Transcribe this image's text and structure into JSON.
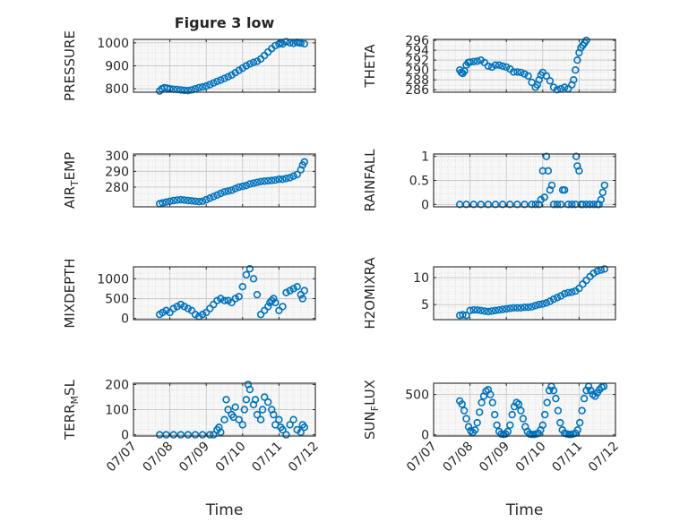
{
  "figure": {
    "title": "Figure 3 low",
    "xlabel": "Time"
  },
  "colors": {
    "marker": "#0072BD",
    "axis": "#262626",
    "grid": "#d9d9d9",
    "axes_bg": "#f7f7f7"
  },
  "chart_data": [
    {
      "type": "scatter",
      "ylabel": "PRESSURE",
      "ylim": [
        785,
        1015
      ],
      "yticks": [
        800,
        900,
        1000
      ],
      "xticks": [
        "07/07",
        "07/08",
        "07/09",
        "07/10",
        "07/11",
        "07/12"
      ],
      "grid": "on",
      "x_days": [
        0.72,
        0.78,
        0.85,
        0.92,
        1.0,
        1.1,
        1.2,
        1.3,
        1.4,
        1.5,
        1.6,
        1.7,
        1.8,
        1.9,
        2.0,
        2.1,
        2.2,
        2.3,
        2.4,
        2.5,
        2.6,
        2.7,
        2.8,
        2.9,
        3.0,
        3.1,
        3.2,
        3.3,
        3.4,
        3.5,
        3.6,
        3.7,
        3.8,
        3.9,
        4.0,
        4.05,
        4.1,
        4.2,
        4.3,
        4.4,
        4.5,
        4.55,
        4.6,
        4.7
      ],
      "y": [
        790,
        800,
        805,
        803,
        800,
        798,
        797,
        795,
        793,
        792,
        795,
        800,
        805,
        808,
        812,
        818,
        825,
        832,
        838,
        845,
        852,
        860,
        870,
        880,
        890,
        900,
        908,
        915,
        920,
        930,
        945,
        960,
        975,
        988,
        995,
        1000,
        995,
        1005,
        1000,
        998,
        1002,
        1000,
        999,
        996
      ]
    },
    {
      "type": "scatter",
      "ylabel": "THETA",
      "ylim": [
        285.5,
        296.2
      ],
      "yticks": [
        286,
        288,
        290,
        292,
        294,
        296
      ],
      "xticks": [
        "07/07",
        "07/08",
        "07/09",
        "07/10",
        "07/11",
        "07/12"
      ],
      "grid": "on",
      "x_days": [
        0.72,
        0.76,
        0.8,
        0.85,
        0.9,
        0.95,
        1.0,
        1.1,
        1.2,
        1.3,
        1.4,
        1.5,
        1.6,
        1.7,
        1.8,
        1.9,
        2.0,
        2.1,
        2.2,
        2.3,
        2.4,
        2.5,
        2.6,
        2.7,
        2.8,
        2.85,
        2.9,
        2.95,
        3.0,
        3.1,
        3.2,
        3.3,
        3.4,
        3.5,
        3.6,
        3.7,
        3.8,
        3.85,
        3.9,
        3.95,
        4.0,
        4.05,
        4.1,
        4.15,
        4.2
      ],
      "y": [
        290,
        289.5,
        289.3,
        289.8,
        291,
        291.5,
        291.6,
        291.7,
        291.8,
        292,
        291.5,
        290.8,
        290.6,
        291,
        291,
        290.8,
        290.6,
        290.2,
        289.6,
        289.6,
        289.5,
        289.2,
        288.8,
        287.5,
        286.5,
        287,
        288,
        289,
        289.5,
        288.8,
        287.8,
        286.5,
        286,
        286.2,
        286.5,
        286.2,
        287,
        288,
        290,
        292,
        293.5,
        294.5,
        295,
        295.5,
        296
      ]
    },
    {
      "type": "scatter",
      "ylabel": "AIR_TEMP",
      "ylim": [
        267.5,
        301
      ],
      "yticks": [
        280,
        290,
        300
      ],
      "xticks": [
        "07/07",
        "07/08",
        "07/09",
        "07/10",
        "07/11",
        "07/12"
      ],
      "grid": "on",
      "x_days": [
        0.72,
        0.8,
        0.9,
        1.0,
        1.1,
        1.2,
        1.3,
        1.4,
        1.5,
        1.6,
        1.7,
        1.8,
        1.9,
        2.0,
        2.1,
        2.2,
        2.3,
        2.4,
        2.5,
        2.6,
        2.7,
        2.8,
        2.9,
        3.0,
        3.1,
        3.2,
        3.3,
        3.4,
        3.5,
        3.6,
        3.7,
        3.8,
        3.9,
        4.0,
        4.1,
        4.2,
        4.3,
        4.4,
        4.5,
        4.6,
        4.65,
        4.7
      ],
      "y": [
        269.5,
        270,
        270.5,
        271,
        271.5,
        271.8,
        272,
        271.8,
        271.5,
        271.3,
        271,
        270.8,
        271,
        272,
        273,
        274,
        275,
        276,
        277,
        277.5,
        278,
        279,
        280,
        280.5,
        281,
        282,
        282.5,
        283,
        283.5,
        283.8,
        284,
        284.2,
        284.5,
        285,
        285,
        285.5,
        286,
        287,
        288,
        291,
        294,
        296
      ]
    },
    {
      "type": "scatter",
      "ylabel": "RAINFALL",
      "ylim": [
        -0.05,
        1.05
      ],
      "yticks": [
        0,
        0.5,
        1
      ],
      "xticks": [
        "07/07",
        "07/08",
        "07/09",
        "07/10",
        "07/11",
        "07/12"
      ],
      "grid": "on",
      "x_days": [
        0.72,
        0.9,
        1.1,
        1.3,
        1.5,
        1.7,
        1.9,
        2.1,
        2.3,
        2.5,
        2.7,
        2.8,
        2.9,
        2.95,
        3.0,
        3.05,
        3.1,
        3.15,
        3.2,
        3.25,
        3.3,
        3.4,
        3.5,
        3.55,
        3.6,
        3.7,
        3.8,
        3.9,
        3.92,
        3.95,
        4.0,
        4.05,
        4.1,
        4.2,
        4.3,
        4.4,
        4.5,
        4.55,
        4.6,
        4.65,
        4.7
      ],
      "y": [
        0,
        0,
        0,
        0,
        0,
        0,
        0,
        0,
        0,
        0,
        0,
        0,
        0,
        0.1,
        0.7,
        0.15,
        1.0,
        0.7,
        0.3,
        0.4,
        0,
        0,
        0,
        0.3,
        0.3,
        0,
        0,
        0,
        1.0,
        0.8,
        0.7,
        0,
        0,
        0,
        0,
        0,
        0,
        0,
        0.1,
        0.25,
        0.4
      ]
    },
    {
      "type": "scatter",
      "ylabel": "MIXDEPTH",
      "ylim": [
        -30,
        1300
      ],
      "yticks": [
        0,
        500,
        1000
      ],
      "xticks": [
        "07/07",
        "07/08",
        "07/09",
        "07/10",
        "07/11",
        "07/12"
      ],
      "grid": "on",
      "x_days": [
        0.72,
        0.8,
        0.9,
        1.0,
        1.1,
        1.2,
        1.3,
        1.4,
        1.5,
        1.6,
        1.7,
        1.8,
        1.9,
        2.0,
        2.1,
        2.2,
        2.3,
        2.4,
        2.5,
        2.6,
        2.7,
        2.8,
        2.9,
        3.0,
        3.1,
        3.2,
        3.3,
        3.4,
        3.5,
        3.6,
        3.7,
        3.75,
        3.8,
        3.85,
        3.9,
        4.0,
        4.1,
        4.2,
        4.3,
        4.4,
        4.5,
        4.6,
        4.65,
        4.7
      ],
      "y": [
        100,
        150,
        200,
        150,
        250,
        300,
        350,
        300,
        250,
        200,
        100,
        50,
        100,
        150,
        250,
        350,
        450,
        500,
        450,
        450,
        400,
        500,
        550,
        800,
        1100,
        1250,
        1000,
        600,
        100,
        200,
        300,
        400,
        450,
        500,
        400,
        200,
        300,
        650,
        700,
        750,
        800,
        600,
        500,
        700
      ]
    },
    {
      "type": "scatter",
      "ylabel": "H2OMIXRA",
      "ylim": [
        2.2,
        12
      ],
      "yticks": [
        5,
        10
      ],
      "xticks": [
        "07/07",
        "07/08",
        "07/09",
        "07/10",
        "07/11",
        "07/12"
      ],
      "grid": "on",
      "x_days": [
        0.72,
        0.8,
        0.9,
        1.0,
        1.1,
        1.2,
        1.3,
        1.4,
        1.5,
        1.6,
        1.7,
        1.8,
        1.9,
        2.0,
        2.1,
        2.2,
        2.3,
        2.4,
        2.5,
        2.6,
        2.7,
        2.8,
        2.9,
        3.0,
        3.1,
        3.2,
        3.3,
        3.4,
        3.5,
        3.6,
        3.7,
        3.8,
        3.9,
        4.0,
        4.1,
        4.2,
        4.3,
        4.4,
        4.5,
        4.6,
        4.7
      ],
      "y": [
        3.0,
        3.1,
        3.0,
        3.9,
        4.0,
        4.0,
        3.9,
        3.8,
        3.7,
        3.8,
        3.9,
        4.0,
        4.1,
        4.2,
        4.3,
        4.4,
        4.4,
        4.4,
        4.5,
        4.5,
        4.6,
        4.8,
        5.0,
        5.1,
        5.3,
        5.6,
        6.0,
        6.3,
        6.6,
        7.0,
        7.2,
        7.3,
        7.5,
        8.0,
        8.8,
        9.5,
        10.2,
        10.8,
        11.2,
        11.4,
        11.6
      ]
    },
    {
      "type": "scatter",
      "ylabel": "TERR_MSL",
      "ylim": [
        -5,
        205
      ],
      "yticks": [
        0,
        100,
        200
      ],
      "xticks": [
        "07/07",
        "07/08",
        "07/09",
        "07/10",
        "07/11",
        "07/12"
      ],
      "grid": "on",
      "x_days": [
        0.72,
        0.9,
        1.1,
        1.3,
        1.5,
        1.7,
        1.9,
        2.1,
        2.2,
        2.3,
        2.35,
        2.4,
        2.5,
        2.55,
        2.6,
        2.7,
        2.75,
        2.8,
        2.9,
        3.0,
        3.05,
        3.1,
        3.15,
        3.2,
        3.3,
        3.35,
        3.4,
        3.5,
        3.55,
        3.6,
        3.7,
        3.8,
        3.85,
        3.9,
        4.0,
        4.05,
        4.1,
        4.2,
        4.3,
        4.4,
        4.5,
        4.6,
        4.65,
        4.7
      ],
      "y": [
        0,
        0,
        0,
        0,
        0,
        0,
        0,
        0,
        0,
        20,
        30,
        10,
        60,
        140,
        100,
        80,
        70,
        110,
        60,
        40,
        100,
        140,
        200,
        180,
        120,
        140,
        80,
        60,
        100,
        150,
        130,
        100,
        80,
        40,
        60,
        30,
        20,
        0,
        40,
        60,
        20,
        10,
        40,
        30
      ]
    },
    {
      "type": "scatter",
      "ylabel": "SUN_FLUX",
      "ylim": [
        -15,
        640
      ],
      "yticks": [
        0,
        500
      ],
      "xticks": [
        "07/07",
        "07/08",
        "07/09",
        "07/10",
        "07/11",
        "07/12"
      ],
      "grid": "on",
      "x_days": [
        0.72,
        0.78,
        0.84,
        0.9,
        0.96,
        1.02,
        1.08,
        1.14,
        1.2,
        1.26,
        1.32,
        1.38,
        1.44,
        1.5,
        1.56,
        1.62,
        1.68,
        1.74,
        1.8,
        1.86,
        1.92,
        1.98,
        2.04,
        2.1,
        2.16,
        2.22,
        2.28,
        2.34,
        2.4,
        2.46,
        2.52,
        2.58,
        2.64,
        2.7,
        2.76,
        2.82,
        2.88,
        2.94,
        3.0,
        3.06,
        3.12,
        3.18,
        3.24,
        3.3,
        3.36,
        3.42,
        3.48,
        3.54,
        3.6,
        3.66,
        3.72,
        3.78,
        3.84,
        3.9,
        3.96,
        4.02,
        4.08,
        4.14,
        4.2,
        4.26,
        4.32,
        4.38,
        4.44,
        4.5,
        4.56,
        4.62,
        4.68
      ],
      "y": [
        420,
        380,
        300,
        200,
        100,
        50,
        30,
        60,
        150,
        280,
        400,
        480,
        540,
        560,
        500,
        400,
        250,
        120,
        40,
        10,
        5,
        10,
        40,
        120,
        250,
        350,
        400,
        380,
        300,
        200,
        100,
        40,
        10,
        5,
        5,
        10,
        20,
        60,
        120,
        250,
        400,
        550,
        600,
        550,
        450,
        300,
        150,
        60,
        20,
        10,
        5,
        5,
        10,
        20,
        60,
        150,
        300,
        450,
        550,
        600,
        550,
        500,
        480,
        520,
        560,
        590,
        600
      ]
    }
  ]
}
